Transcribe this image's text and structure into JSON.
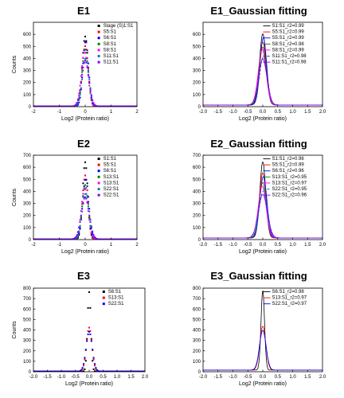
{
  "chart_data": [
    {
      "type": "scatter",
      "title": "E1",
      "xlabel": "Log2 (Protein ratio)",
      "ylabel": "Counts",
      "xlim": [
        -2,
        2
      ],
      "ylim": [
        0,
        700
      ],
      "xticks": [
        -2,
        -1,
        0,
        1,
        2
      ],
      "yticks": [
        0,
        100,
        200,
        300,
        400,
        500,
        600
      ],
      "legend_position": "top-right",
      "series": [
        {
          "name": "Stage (S)1:S1",
          "color": "#000000",
          "peak": 580,
          "center": 0.0,
          "sigma": 0.11
        },
        {
          "name": "S5:S1",
          "color": "#ff0000",
          "peak": 500,
          "center": 0.0,
          "sigma": 0.12
        },
        {
          "name": "S6:S1",
          "color": "#0000ff",
          "peak": 540,
          "center": 0.02,
          "sigma": 0.11
        },
        {
          "name": "S8:S1",
          "color": "#008000",
          "peak": 470,
          "center": 0.0,
          "sigma": 0.12
        },
        {
          "name": "S8:S1",
          "color": "#ff00ff",
          "peak": 450,
          "center": -0.02,
          "sigma": 0.13
        },
        {
          "name": "S11:S1",
          "color": "#0080c0",
          "peak": 400,
          "center": 0.02,
          "sigma": 0.13
        },
        {
          "name": "S11:S1",
          "color": "#8000ff",
          "peak": 380,
          "center": 0.0,
          "sigma": 0.14
        }
      ]
    },
    {
      "type": "line",
      "title": "E1_Gaussian fitting",
      "xlabel": "Log2 (Protein ratio)",
      "ylabel": "",
      "xlim": [
        -2.0,
        2.0
      ],
      "ylim": [
        0,
        700
      ],
      "xticks": [
        -2.0,
        -1.5,
        -1.0,
        -0.5,
        0.0,
        0.5,
        1.0,
        1.5,
        2.0
      ],
      "yticks": [
        0,
        100,
        200,
        300,
        400,
        500,
        600
      ],
      "legend_position": "top-right",
      "series": [
        {
          "name": "S1:S1_r2=0.99",
          "color": "#000000",
          "dash": "",
          "peak": 590,
          "center": 0.0,
          "sigma": 0.11
        },
        {
          "name": "S5:S1_r2=0.99",
          "color": "#ff0000",
          "dash": "",
          "peak": 520,
          "center": 0.0,
          "sigma": 0.12
        },
        {
          "name": "S5:S1_r2=0.99",
          "color": "#0000ff",
          "dash": "",
          "peak": 560,
          "center": 0.02,
          "sigma": 0.11
        },
        {
          "name": "S8:S1_r2=0.98",
          "color": "#008000",
          "dash": "",
          "peak": 480,
          "center": 0.0,
          "sigma": 0.12
        },
        {
          "name": "S8:S1_r2=0.99",
          "color": "#ff00ff",
          "dash": "",
          "peak": 460,
          "center": -0.02,
          "sigma": 0.13
        },
        {
          "name": "S11:S1_r2=0.98",
          "color": "#333333",
          "dash": "3,2",
          "peak": 400,
          "center": 0.02,
          "sigma": 0.13
        },
        {
          "name": "S11:S1_r2=0.98",
          "color": "#8000ff",
          "dash": "",
          "peak": 380,
          "center": 0.0,
          "sigma": 0.14
        }
      ]
    },
    {
      "type": "scatter",
      "title": "E2",
      "xlabel": "Log2 (Protein ratio)",
      "ylabel": "Counts",
      "xlim": [
        -2,
        2
      ],
      "ylim": [
        0,
        700
      ],
      "xticks": [
        -2,
        -1,
        0,
        1,
        2
      ],
      "yticks": [
        0,
        100,
        200,
        300,
        400,
        500,
        600,
        700
      ],
      "legend_position": "top-right",
      "series": [
        {
          "name": "S1:S1",
          "color": "#000000",
          "peak": 640,
          "center": 0.0,
          "sigma": 0.1
        },
        {
          "name": "S5:S1",
          "color": "#ff0000",
          "peak": 530,
          "center": 0.0,
          "sigma": 0.11
        },
        {
          "name": "S6:S1",
          "color": "#0000ff",
          "peak": 500,
          "center": 0.02,
          "sigma": 0.12
        },
        {
          "name": "S13:S1",
          "color": "#008000",
          "peak": 450,
          "center": 0.0,
          "sigma": 0.12
        },
        {
          "name": "S13:S1",
          "color": "#ff00ff",
          "peak": 420,
          "center": -0.02,
          "sigma": 0.13
        },
        {
          "name": "S22:S1",
          "color": "#0080c0",
          "peak": 380,
          "center": 0.02,
          "sigma": 0.14
        },
        {
          "name": "S22:S1",
          "color": "#8000ff",
          "peak": 350,
          "center": 0.0,
          "sigma": 0.15
        }
      ]
    },
    {
      "type": "line",
      "title": "E2_Gaussian fitting",
      "xlabel": "Log2 (Protein ratio)",
      "ylabel": "",
      "xlim": [
        -2.0,
        2.0
      ],
      "ylim": [
        0,
        700
      ],
      "xticks": [
        -2.0,
        -1.5,
        -1.0,
        -0.5,
        0.0,
        0.5,
        1.0,
        1.5,
        2.0
      ],
      "yticks": [
        0,
        100,
        200,
        300,
        400,
        500,
        600,
        700
      ],
      "legend_position": "top-right",
      "series": [
        {
          "name": "S1:S1_r2=0.96",
          "color": "#000000",
          "dash": "",
          "peak": 630,
          "center": 0.0,
          "sigma": 0.1
        },
        {
          "name": "S5:S1_r2=0.99",
          "color": "#ff0000",
          "dash": "",
          "peak": 540,
          "center": 0.0,
          "sigma": 0.11
        },
        {
          "name": "S6:S1_r2=0.96",
          "color": "#0000ff",
          "dash": "",
          "peak": 510,
          "center": 0.02,
          "sigma": 0.12
        },
        {
          "name": "S13:S1_r2=0.95",
          "color": "#008000",
          "dash": "",
          "peak": 460,
          "center": 0.0,
          "sigma": 0.12
        },
        {
          "name": "S13:S1_r2=0.97",
          "color": "#ff00ff",
          "dash": "",
          "peak": 430,
          "center": -0.02,
          "sigma": 0.13
        },
        {
          "name": "S22:S1_r2=0.95",
          "color": "#0080c0",
          "dash": "3,2",
          "peak": 390,
          "center": 0.02,
          "sigma": 0.14
        },
        {
          "name": "S22:S1_r2=0.96",
          "color": "#8000ff",
          "dash": "",
          "peak": 360,
          "center": 0.0,
          "sigma": 0.15
        }
      ]
    },
    {
      "type": "scatter",
      "title": "E3",
      "xlabel": "Log2 (Protein ratio)",
      "ylabel": "Counts",
      "xlim": [
        -2.0,
        2.0
      ],
      "ylim": [
        0,
        800
      ],
      "xticks": [
        -2.0,
        -1.5,
        -1.0,
        -0.5,
        0.0,
        0.5,
        1.0,
        1.5,
        2.0
      ],
      "yticks": [
        0,
        100,
        200,
        300,
        400,
        500,
        600,
        700,
        800
      ],
      "legend_position": "top-right",
      "series": [
        {
          "name": "S6:S1",
          "color": "#000000",
          "peak": 760,
          "center": 0.0,
          "sigma": 0.06
        },
        {
          "name": "S13:S1",
          "color": "#ff0000",
          "peak": 420,
          "center": 0.0,
          "sigma": 0.1
        },
        {
          "name": "S22:S1",
          "color": "#0000ff",
          "peak": 380,
          "center": 0.0,
          "sigma": 0.11
        }
      ]
    },
    {
      "type": "line",
      "title": "E3_Gaussian fitting",
      "xlabel": "Log2 (Protein ratio)",
      "ylabel": "",
      "xlim": [
        -2.0,
        2.0
      ],
      "ylim": [
        0,
        800
      ],
      "xticks": [
        -2.0,
        -1.5,
        -1.0,
        -0.5,
        0.0,
        0.5,
        1.0,
        1.5,
        2.0
      ],
      "yticks": [
        0,
        100,
        200,
        300,
        400,
        500,
        600,
        700,
        800
      ],
      "legend_position": "top-right",
      "series": [
        {
          "name": "S6:S1_r2=0.98",
          "color": "#000000",
          "dash": "",
          "peak": 760,
          "center": 0.0,
          "sigma": 0.06
        },
        {
          "name": "S13:S1_r2=0.97",
          "color": "#ff0000",
          "dash": "",
          "peak": 420,
          "center": 0.0,
          "sigma": 0.1
        },
        {
          "name": "S22:S1_r2=0.97",
          "color": "#0000ff",
          "dash": "",
          "peak": 380,
          "center": 0.0,
          "sigma": 0.11
        }
      ]
    }
  ]
}
